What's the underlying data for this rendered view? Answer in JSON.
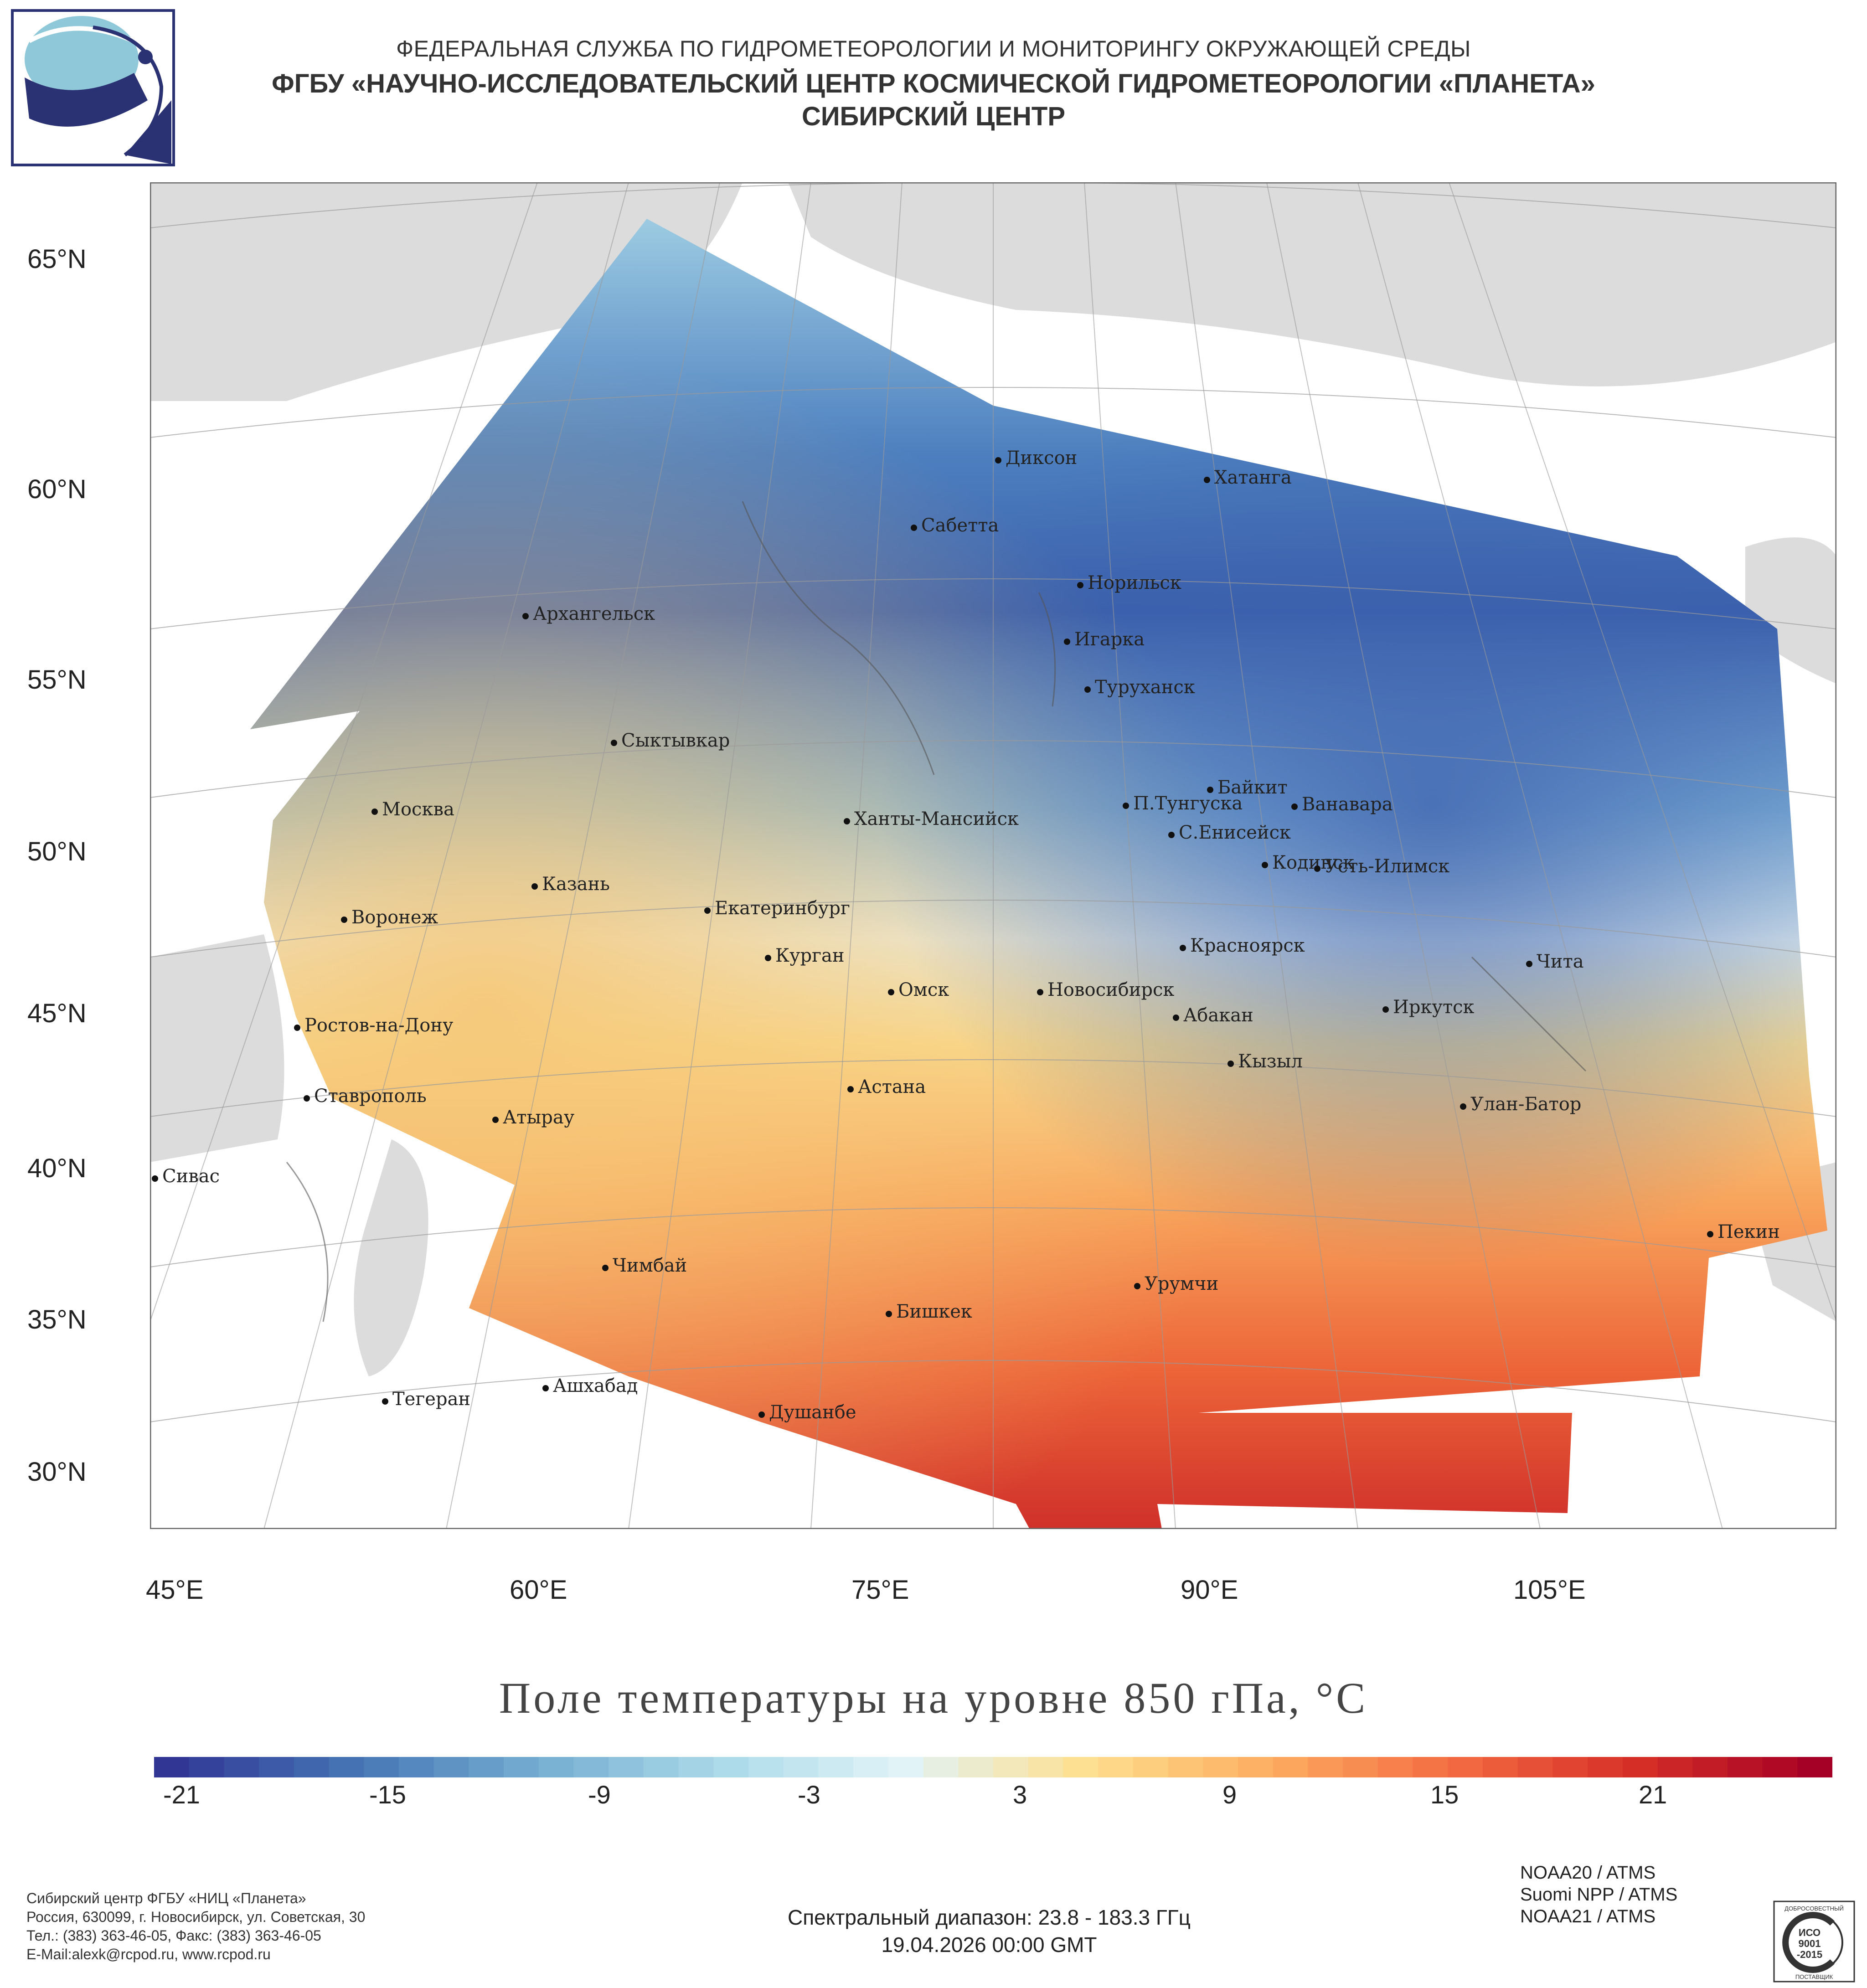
{
  "header": {
    "line1": "ФЕДЕРАЛЬНАЯ СЛУЖБА ПО ГИДРОМЕТЕОРОЛОГИИ И МОНИТОРИНГУ ОКРУЖАЮЩЕЙ СРЕДЫ",
    "line2": "ФГБУ «НАУЧНО-ИССЛЕДОВАТЕЛЬСКИЙ ЦЕНТР КОСМИЧЕСКОЙ ГИДРОМЕТЕОРОЛОГИИ «ПЛАНЕТА»",
    "line3": "СИБИРСКИЙ ЦЕНТР"
  },
  "map": {
    "lat_labels": [
      "65°N",
      "60°N",
      "55°N",
      "50°N",
      "45°N",
      "40°N",
      "35°N",
      "30°N"
    ],
    "lon_labels": [
      "45°E",
      "60°E",
      "75°E",
      "90°E",
      "105°E"
    ],
    "cities": [
      "Диксон",
      "Хатанга",
      "Сабетта",
      "Норильск",
      "Архангельск",
      "Игарка",
      "Туруханск",
      "Сыктывкар",
      "Байкит",
      "Москва",
      "Ханты-Мансийск",
      "П.Тунгуска",
      "Ванавара",
      "С.Енисейск",
      "Казань",
      "Кодинск",
      "Усть-Илимск",
      "Воронеж",
      "Екатеринбург",
      "Красноярск",
      "Курган",
      "Чита",
      "Омск",
      "Новосибирск",
      "Ростов-на-Дону",
      "Абакан",
      "Иркутск",
      "Кызыл",
      "Астана",
      "Ставрополь",
      "Улан-Батор",
      "Атырау",
      "Сивас",
      "Пекин",
      "Чимбай",
      "Урумчи",
      "Бишкек",
      "Ашхабад",
      "Тегеран",
      "Душанбе"
    ]
  },
  "title": "Поле температуры на уровне 850 гПа, °С",
  "colorbar": {
    "ticks": [
      "-21",
      "-15",
      "-9",
      "-3",
      "3",
      "9",
      "15",
      "21"
    ],
    "colors": [
      "#313695",
      "#4575b4",
      "#74add1",
      "#abd9e9",
      "#e0f3f8",
      "#fee090",
      "#fdae61",
      "#f46d43",
      "#d73027",
      "#a50026"
    ]
  },
  "footer": {
    "org": "Сибирский центр ФГБУ «НИЦ «Планета»",
    "address": "Россия, 630099, г. Новосибирск, ул. Советская, 30",
    "phone": "Тел.: (383) 363-46-05, Факс: (383) 363-46-05",
    "email": "E-Mail:alexk@rcpod.ru, www.rcpod.ru",
    "sensors": [
      "NOAA20 / ATMS",
      "Suomi NPP / ATMS",
      "NOAA21 / ATMS"
    ],
    "spectral": "Спектральный диапазон: 23.8 - 183.3 ГГц",
    "datetime": "19.04.2026 00:00 GMT",
    "iso_top": "ДОБРОСОВЕСТНЫЙ",
    "iso_mid1": "ИСО",
    "iso_mid2": "9001",
    "iso_mid3": "-2015",
    "iso_bottom": "ПОСТАВЩИК"
  }
}
